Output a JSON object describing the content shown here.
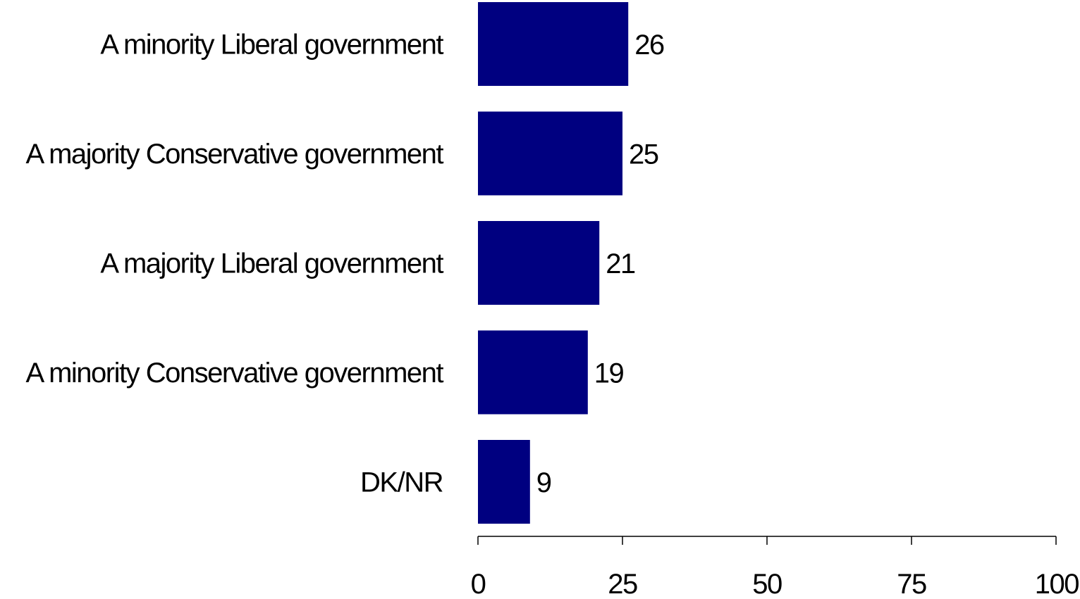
{
  "chart_data": {
    "type": "bar",
    "orientation": "horizontal",
    "categories": [
      "A minority Liberal government",
      "A majority Conservative government",
      "A majority Liberal government",
      "A minority Conservative government",
      "DK/NR"
    ],
    "values": [
      26,
      25,
      21,
      19,
      9
    ],
    "value_labels": [
      "26",
      "25",
      "21",
      "19",
      "9"
    ],
    "xlim": [
      0,
      100
    ],
    "xticks": [
      0,
      25,
      50,
      75,
      100
    ],
    "xtick_labels": [
      "0",
      "25",
      "50",
      "75",
      "100"
    ],
    "grid": false,
    "legend": "none",
    "bar_color": "#000080",
    "axis_color": "#000000"
  }
}
